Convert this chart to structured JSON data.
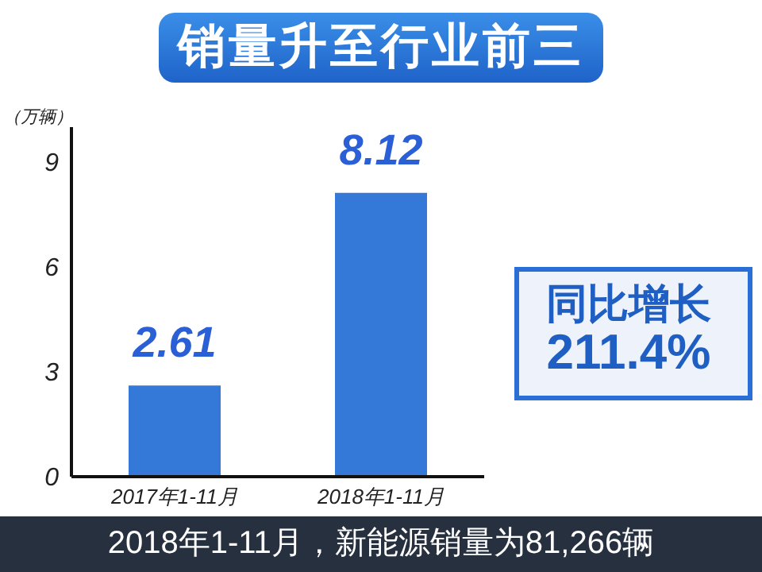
{
  "chart_data": {
    "type": "bar",
    "title": "销量升至行业前三",
    "ylabel": "（万辆）",
    "categories": [
      "2017年1-11月",
      "2018年1-11月"
    ],
    "values": [
      2.61,
      8.12
    ],
    "color": "#3478d8",
    "ylim": [
      0,
      10
    ],
    "yticks": [
      0,
      3,
      6,
      9
    ],
    "grid": false,
    "legend": false,
    "data_labels": true,
    "annotations": [
      "同比增长",
      "211.4%",
      "2018年1-11月，新能源销量为81,266辆"
    ]
  }
}
